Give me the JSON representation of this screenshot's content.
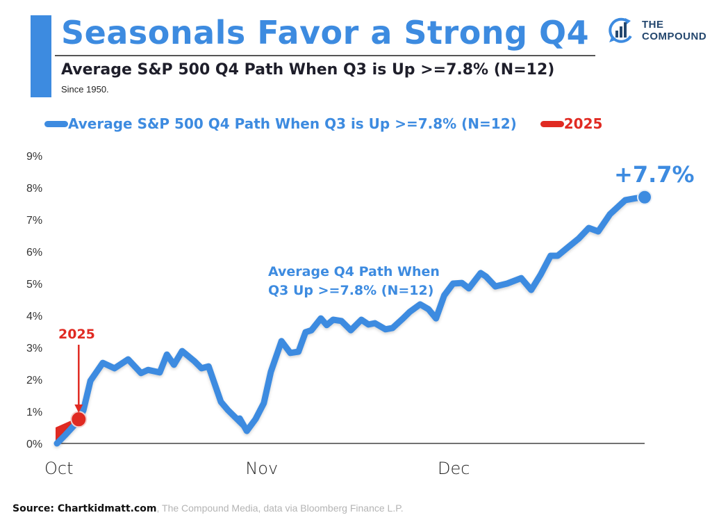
{
  "header": {
    "title": "Seasonals Favor a Strong Q4",
    "subtitle": "Average S&P 500 Q4 Path When Q3 is Up >=7.8% (N=12)",
    "note": "Since 1950."
  },
  "logo": {
    "icon": "bar-chart-cycle-icon",
    "line1": "THE",
    "line2": "COMPOUND"
  },
  "colors": {
    "accent": "#3d8be0",
    "series_avg": "#3d8be0",
    "series_2025": "#e02a22",
    "text_dark": "#1e1e2a",
    "logo_text": "#24476e"
  },
  "legend": [
    {
      "label": "Average S&P 500 Q4 Path When Q3 is Up >=7.8% (N=12)",
      "color": "#3d8be0"
    },
    {
      "label": "2025",
      "color": "#e02a22"
    }
  ],
  "source": {
    "bold": "Source: Chartkidmatt.com",
    "rest": ", The Compound Media, data via Bloomberg Finance L.P."
  },
  "chart_data": {
    "type": "line",
    "title": "Average S&P 500 Q4 Path When Q3 is Up >=7.8% (N=12)",
    "xlabel": "",
    "ylabel": "",
    "x_unit": "fraction of Q4 elapsed",
    "xlim": [
      0,
      1
    ],
    "ylim": [
      0,
      9
    ],
    "y_ticks": [
      0,
      1,
      2,
      3,
      4,
      5,
      6,
      7,
      8,
      9
    ],
    "y_tick_labels": [
      "0%",
      "1%",
      "2%",
      "3%",
      "4%",
      "5%",
      "6%",
      "7%",
      "8%",
      "9%"
    ],
    "x_ticks": [
      {
        "label": "Oct",
        "x": 0
      },
      {
        "label": "Nov",
        "x": 0.342
      },
      {
        "label": "Dec",
        "x": 0.669
      }
    ],
    "grid": false,
    "legend_position": "top",
    "series": [
      {
        "name": "Average S&P 500 Q4 Path When Q3 is Up >=7.8% (N=12)",
        "color": "#3d8be0",
        "x": [
          0,
          0.015,
          0.037,
          0.045,
          0.057,
          0.078,
          0.098,
          0.121,
          0.143,
          0.155,
          0.175,
          0.187,
          0.199,
          0.213,
          0.234,
          0.246,
          0.258,
          0.279,
          0.291,
          0.317,
          0.311,
          0.323,
          0.338,
          0.352,
          0.364,
          0.382,
          0.397,
          0.411,
          0.423,
          0.433,
          0.449,
          0.459,
          0.47,
          0.484,
          0.5,
          0.518,
          0.53,
          0.541,
          0.559,
          0.571,
          0.589,
          0.6,
          0.618,
          0.632,
          0.645,
          0.659,
          0.674,
          0.689,
          0.701,
          0.721,
          0.73,
          0.746,
          0.766,
          0.79,
          0.807,
          0.823,
          0.84,
          0.852,
          0.868,
          0.888,
          0.905,
          0.921,
          0.941,
          0.967,
          0.985,
          1.0
        ],
        "values": [
          0,
          0.28,
          0.72,
          1.04,
          1.96,
          2.52,
          2.35,
          2.63,
          2.2,
          2.3,
          2.22,
          2.78,
          2.46,
          2.89,
          2.57,
          2.35,
          2.41,
          1.3,
          1.04,
          0.57,
          0.78,
          0.39,
          0.76,
          1.26,
          2.24,
          3.2,
          2.83,
          2.87,
          3.48,
          3.54,
          3.91,
          3.7,
          3.87,
          3.83,
          3.54,
          3.87,
          3.72,
          3.76,
          3.57,
          3.61,
          3.91,
          4.11,
          4.35,
          4.2,
          3.91,
          4.63,
          5.0,
          5.02,
          4.85,
          5.33,
          5.22,
          4.91,
          5.0,
          5.17,
          4.8,
          5.28,
          5.87,
          5.87,
          6.11,
          6.41,
          6.74,
          6.63,
          7.17,
          7.61,
          7.67,
          7.7
        ]
      },
      {
        "name": "2025",
        "color": "#e02a22",
        "x": [
          0,
          0.037
        ],
        "values": [
          0.5,
          0.82
        ]
      }
    ],
    "annotations": [
      {
        "text": "+7.7%",
        "series": "Average S&P 500 Q4 Path When Q3 is Up >=7.8% (N=12)",
        "x": 1.0,
        "y": 7.7,
        "color": "#3d8be0"
      },
      {
        "text": "Average Q4 Path When",
        "text2": "Q3 Up >=7.8% (N=12)",
        "x": 0.36,
        "y": 5.5,
        "color": "#3d8be0"
      },
      {
        "text": "2025",
        "arrow_to": {
          "x": 0.037,
          "y": 0.72
        },
        "x": 0.037,
        "y": 3.3,
        "color": "#e02a22"
      }
    ]
  }
}
